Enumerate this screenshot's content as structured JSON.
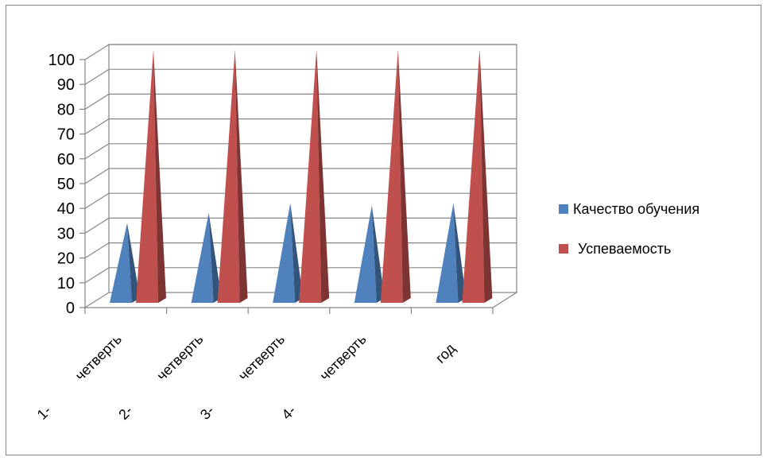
{
  "chart_data": {
    "type": "bar",
    "title": "",
    "xlabel": "",
    "ylabel": "",
    "ylim": [
      0,
      100
    ],
    "yticks": [
      0,
      10,
      20,
      30,
      40,
      50,
      60,
      70,
      80,
      90,
      100
    ],
    "categories": [
      "1- четверть",
      "2- четверть",
      "3- четверть",
      "4- четверть",
      "год"
    ],
    "series": [
      {
        "name": "Качество обучения",
        "values": [
          30,
          34,
          38,
          37,
          38
        ],
        "color": "#4F81BD"
      },
      {
        "name": "Успеваемость",
        "values": [
          100,
          100,
          100,
          100,
          100
        ],
        "color": "#C0504D"
      }
    ],
    "grid": true,
    "legend": "right",
    "shape": "3d-pyramid"
  },
  "category_labels": [
    {
      "num": "1-",
      "word": "четверть"
    },
    {
      "num": "2-",
      "word": "четверть"
    },
    {
      "num": "3-",
      "word": "четверть"
    },
    {
      "num": "4-",
      "word": "четверть"
    },
    {
      "num": "",
      "word": "год"
    }
  ]
}
